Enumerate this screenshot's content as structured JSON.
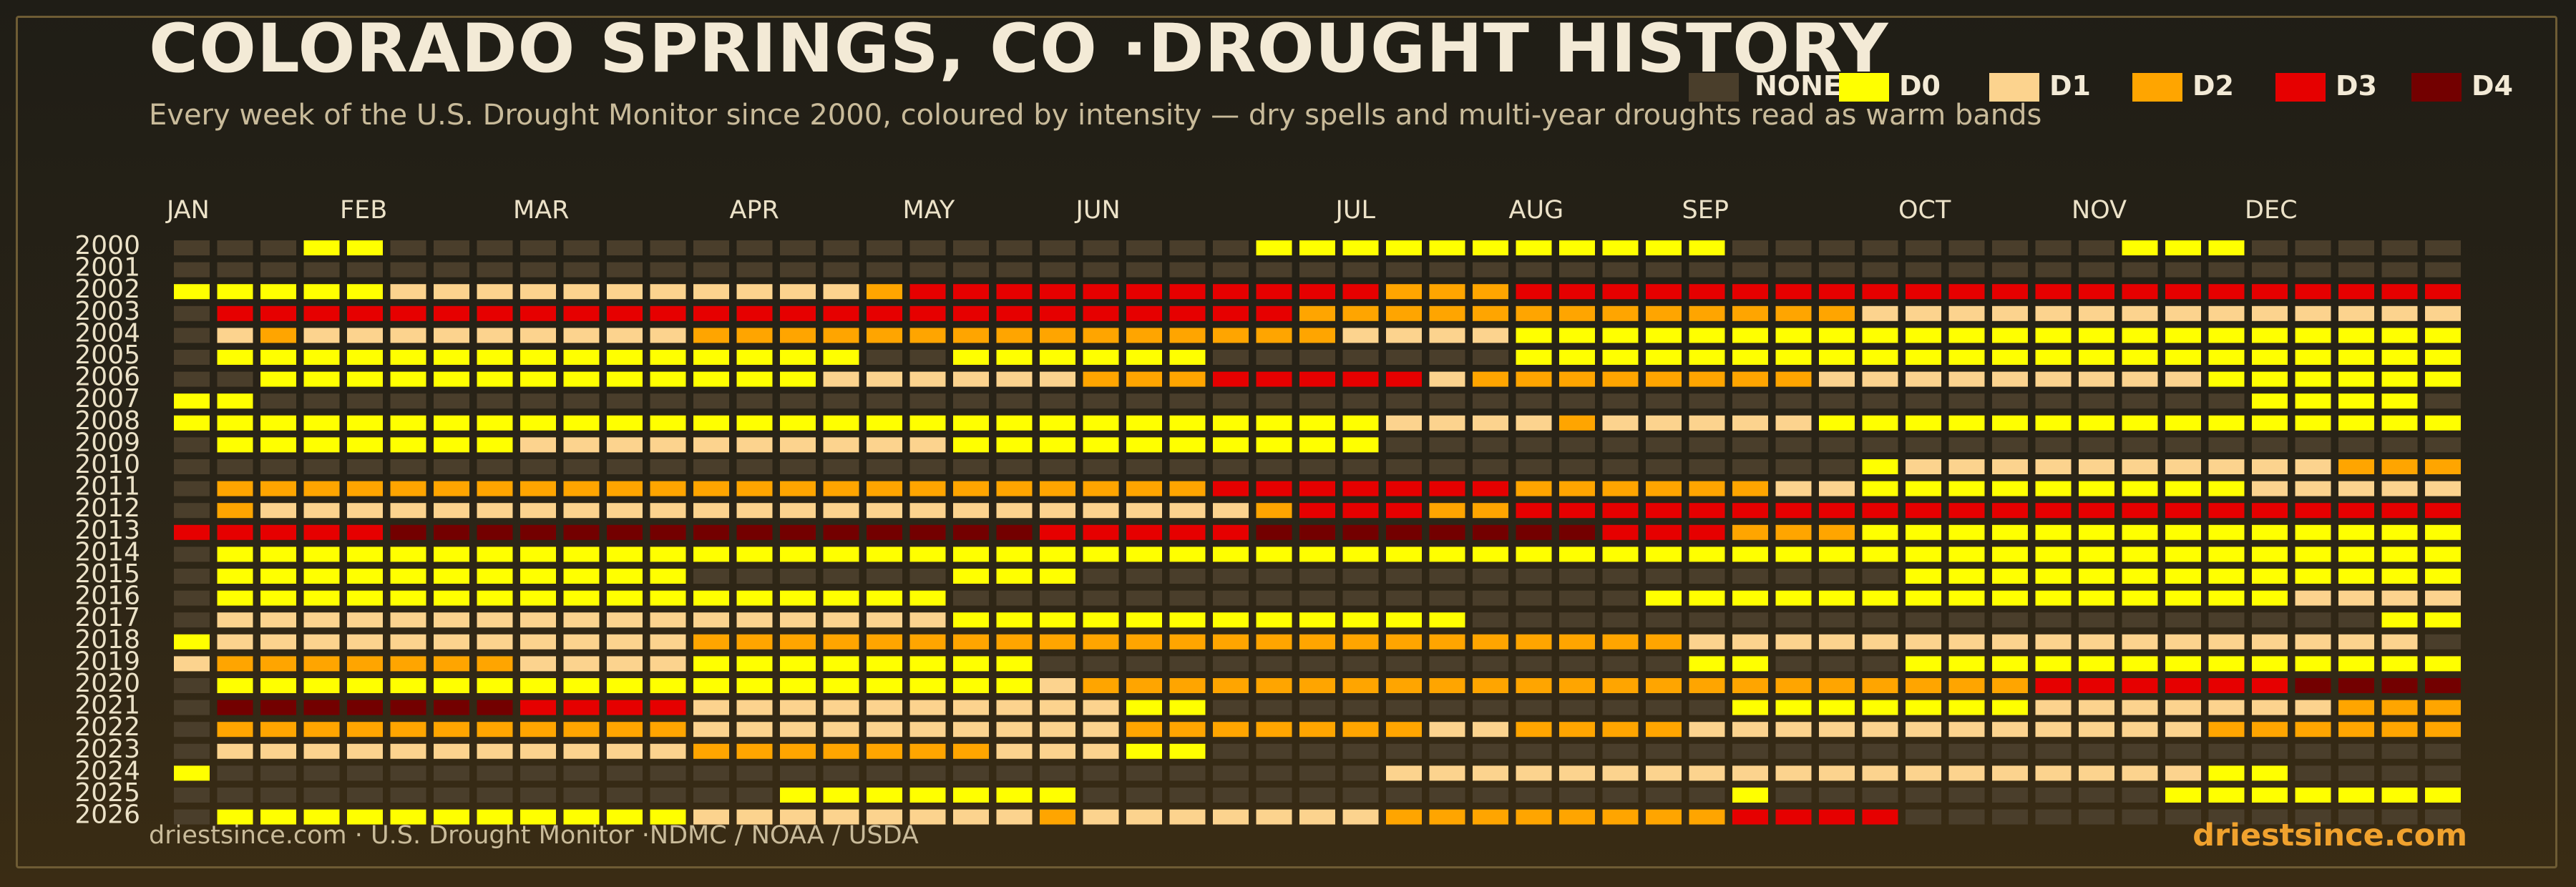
{
  "header": {
    "title": "COLORADO SPRINGS, CO ·DROUGHT HISTORY",
    "subtitle": "Every week of the U.S. Drought Monitor since 2000, coloured by intensity — dry spells and multi-year droughts read as warm bands"
  },
  "footer": {
    "source": "driestsince.com  · U.S. Drought Monitor ·NDMC / NOAA / USDA",
    "brand": "driestsince.com"
  },
  "legend": [
    {
      "label": "NONE",
      "color": "#4a3e2b"
    },
    {
      "label": "D0",
      "color": "#ffff00"
    },
    {
      "label": "D1",
      "color": "#fcd38e"
    },
    {
      "label": "D2",
      "color": "#ffa500"
    },
    {
      "label": "D3",
      "color": "#e60000"
    },
    {
      "label": "D4",
      "color": "#730000"
    }
  ],
  "chart_data": {
    "type": "heatmap",
    "title": "COLORADO SPRINGS, CO ·DROUGHT HISTORY",
    "x_labels": [
      "JAN",
      "FEB",
      "MAR",
      "APR",
      "MAY",
      "JUN",
      "JUL",
      "AUG",
      "SEP",
      "OCT",
      "NOV",
      "DEC"
    ],
    "x_label_weeks": [
      0,
      4,
      8,
      13,
      17,
      21,
      27,
      31,
      35,
      40,
      44,
      48
    ],
    "y_labels": [
      "2000",
      "2001",
      "2002",
      "2003",
      "2004",
      "2005",
      "2006",
      "2007",
      "2008",
      "2009",
      "2010",
      "2011",
      "2012",
      "2013",
      "2014",
      "2015",
      "2016",
      "2017",
      "2018",
      "2019",
      "2020",
      "2021",
      "2022",
      "2023",
      "2024",
      "2025",
      "2026"
    ],
    "weeks_per_year": 53,
    "value_scale": "-1 = no data/none, 0 = D0, 1 = D1, 2 = D2, 3 = D3, 4 = D4",
    "rows": {
      "2000": [
        -1,
        -1,
        -1,
        0,
        0,
        -1,
        -1,
        -1,
        -1,
        -1,
        -1,
        -1,
        -1,
        -1,
        -1,
        -1,
        -1,
        -1,
        -1,
        -1,
        -1,
        -1,
        -1,
        -1,
        -1,
        0,
        0,
        0,
        0,
        0,
        0,
        0,
        0,
        0,
        0,
        0,
        -1,
        -1,
        -1,
        -1,
        -1,
        -1,
        -1,
        -1,
        -1,
        0,
        0,
        0,
        -1,
        -1,
        -1,
        -1,
        -1
      ],
      "2001": [
        -1,
        -1,
        -1,
        -1,
        -1,
        -1,
        -1,
        -1,
        -1,
        -1,
        -1,
        -1,
        -1,
        -1,
        -1,
        -1,
        -1,
        -1,
        -1,
        -1,
        -1,
        -1,
        -1,
        -1,
        -1,
        -1,
        -1,
        -1,
        -1,
        -1,
        -1,
        -1,
        -1,
        -1,
        -1,
        -1,
        -1,
        -1,
        -1,
        -1,
        -1,
        -1,
        -1,
        -1,
        -1,
        -1,
        -1,
        -1,
        -1,
        -1,
        -1,
        -1,
        -1
      ],
      "2002": [
        0,
        0,
        0,
        0,
        0,
        1,
        1,
        1,
        1,
        1,
        1,
        1,
        1,
        1,
        1,
        1,
        2,
        3,
        3,
        3,
        3,
        3,
        3,
        3,
        3,
        3,
        3,
        3,
        2,
        2,
        2,
        3,
        3,
        3,
        3,
        3,
        3,
        3,
        3,
        3,
        3,
        3,
        3,
        3,
        3,
        3,
        3,
        3,
        3,
        3,
        3,
        3,
        3
      ],
      "2003": [
        -1,
        3,
        3,
        3,
        3,
        3,
        3,
        3,
        3,
        3,
        3,
        3,
        3,
        3,
        3,
        3,
        3,
        3,
        3,
        3,
        3,
        3,
        3,
        3,
        3,
        3,
        2,
        2,
        2,
        2,
        2,
        2,
        2,
        2,
        2,
        2,
        2,
        2,
        2,
        1,
        1,
        1,
        1,
        1,
        1,
        1,
        1,
        1,
        1,
        1,
        1,
        1,
        1
      ],
      "2004": [
        -1,
        1,
        2,
        1,
        1,
        1,
        1,
        1,
        1,
        1,
        1,
        1,
        2,
        2,
        2,
        2,
        2,
        2,
        2,
        2,
        2,
        2,
        2,
        2,
        2,
        2,
        2,
        1,
        1,
        1,
        1,
        0,
        0,
        0,
        0,
        0,
        0,
        0,
        0,
        0,
        0,
        0,
        0,
        0,
        0,
        0,
        0,
        0,
        0,
        0,
        0,
        0,
        0
      ],
      "2005": [
        -1,
        0,
        0,
        0,
        0,
        0,
        0,
        0,
        0,
        0,
        0,
        0,
        0,
        0,
        0,
        0,
        -1,
        -1,
        0,
        0,
        0,
        0,
        0,
        0,
        -1,
        -1,
        -1,
        -1,
        -1,
        -1,
        -1,
        0,
        0,
        0,
        0,
        0,
        0,
        0,
        0,
        0,
        0,
        0,
        0,
        0,
        0,
        0,
        0,
        0,
        0,
        0,
        0,
        0,
        0
      ],
      "2006": [
        -1,
        -1,
        0,
        0,
        0,
        0,
        0,
        0,
        0,
        0,
        0,
        0,
        0,
        0,
        0,
        1,
        1,
        1,
        1,
        1,
        1,
        2,
        2,
        2,
        3,
        3,
        3,
        3,
        3,
        1,
        2,
        2,
        2,
        2,
        2,
        2,
        2,
        2,
        1,
        1,
        1,
        1,
        1,
        1,
        1,
        1,
        1,
        0,
        0,
        0,
        0,
        0,
        0
      ],
      "2007": [
        0,
        0,
        -1,
        -1,
        -1,
        -1,
        -1,
        -1,
        -1,
        -1,
        -1,
        -1,
        -1,
        -1,
        -1,
        -1,
        -1,
        -1,
        -1,
        -1,
        -1,
        -1,
        -1,
        -1,
        -1,
        -1,
        -1,
        -1,
        -1,
        -1,
        -1,
        -1,
        -1,
        -1,
        -1,
        -1,
        -1,
        -1,
        -1,
        -1,
        -1,
        -1,
        -1,
        -1,
        -1,
        -1,
        -1,
        -1,
        0,
        0,
        0,
        0,
        -1
      ],
      "2008": [
        0,
        0,
        0,
        0,
        0,
        0,
        0,
        0,
        0,
        0,
        0,
        0,
        0,
        0,
        0,
        0,
        0,
        0,
        0,
        0,
        0,
        0,
        0,
        0,
        0,
        0,
        0,
        0,
        1,
        1,
        1,
        1,
        2,
        1,
        1,
        1,
        1,
        1,
        0,
        0,
        0,
        0,
        0,
        0,
        0,
        0,
        0,
        0,
        0,
        0,
        0,
        0,
        0
      ],
      "2009": [
        -1,
        0,
        0,
        0,
        0,
        0,
        0,
        0,
        1,
        1,
        1,
        1,
        1,
        1,
        1,
        1,
        1,
        1,
        0,
        0,
        0,
        0,
        0,
        0,
        0,
        0,
        0,
        0,
        -1,
        -1,
        -1,
        -1,
        -1,
        -1,
        -1,
        -1,
        -1,
        -1,
        -1,
        -1,
        -1,
        -1,
        -1,
        -1,
        -1,
        -1,
        -1,
        -1,
        -1,
        -1,
        -1,
        -1,
        -1
      ],
      "2010": [
        -1,
        -1,
        -1,
        -1,
        -1,
        -1,
        -1,
        -1,
        -1,
        -1,
        -1,
        -1,
        -1,
        -1,
        -1,
        -1,
        -1,
        -1,
        -1,
        -1,
        -1,
        -1,
        -1,
        -1,
        -1,
        -1,
        -1,
        -1,
        -1,
        -1,
        -1,
        -1,
        -1,
        -1,
        -1,
        -1,
        -1,
        -1,
        -1,
        0,
        1,
        1,
        1,
        1,
        1,
        1,
        1,
        1,
        1,
        1,
        2,
        2,
        2
      ],
      "2011": [
        -1,
        2,
        2,
        2,
        2,
        2,
        2,
        2,
        2,
        2,
        2,
        2,
        2,
        2,
        2,
        2,
        2,
        2,
        2,
        2,
        2,
        2,
        2,
        2,
        3,
        3,
        3,
        3,
        3,
        3,
        3,
        2,
        2,
        2,
        2,
        2,
        2,
        1,
        1,
        0,
        0,
        0,
        0,
        0,
        0,
        0,
        0,
        0,
        1,
        1,
        1,
        1,
        1
      ],
      "2012": [
        -1,
        2,
        1,
        1,
        1,
        1,
        1,
        1,
        1,
        1,
        1,
        1,
        1,
        1,
        1,
        1,
        1,
        1,
        1,
        1,
        1,
        1,
        1,
        1,
        1,
        2,
        3,
        3,
        3,
        2,
        2,
        3,
        3,
        3,
        3,
        3,
        3,
        3,
        3,
        3,
        3,
        3,
        3,
        3,
        3,
        3,
        3,
        3,
        3,
        3,
        3,
        3,
        3
      ],
      "2013": [
        3,
        3,
        3,
        3,
        3,
        4,
        4,
        4,
        4,
        4,
        4,
        4,
        4,
        4,
        4,
        4,
        4,
        4,
        4,
        4,
        3,
        3,
        3,
        3,
        3,
        4,
        4,
        4,
        4,
        4,
        4,
        4,
        4,
        3,
        3,
        3,
        2,
        2,
        2,
        0,
        0,
        0,
        0,
        0,
        0,
        0,
        0,
        0,
        0,
        0,
        0,
        0,
        0
      ],
      "2014": [
        -1,
        0,
        0,
        0,
        0,
        0,
        0,
        0,
        0,
        0,
        0,
        0,
        0,
        0,
        0,
        0,
        0,
        0,
        0,
        0,
        0,
        0,
        0,
        0,
        0,
        0,
        0,
        0,
        0,
        0,
        0,
        0,
        0,
        0,
        0,
        0,
        0,
        0,
        0,
        0,
        0,
        0,
        0,
        0,
        0,
        0,
        0,
        0,
        0,
        0,
        0,
        0,
        0
      ],
      "2015": [
        -1,
        0,
        0,
        0,
        0,
        0,
        0,
        0,
        0,
        0,
        0,
        0,
        -1,
        -1,
        -1,
        -1,
        -1,
        -1,
        0,
        0,
        0,
        -1,
        -1,
        -1,
        -1,
        -1,
        -1,
        -1,
        -1,
        -1,
        -1,
        -1,
        -1,
        -1,
        -1,
        -1,
        -1,
        -1,
        -1,
        -1,
        0,
        0,
        0,
        0,
        0,
        0,
        0,
        0,
        0,
        0,
        0,
        0,
        0
      ],
      "2016": [
        -1,
        0,
        0,
        0,
        0,
        0,
        0,
        0,
        0,
        0,
        0,
        0,
        0,
        0,
        0,
        0,
        0,
        0,
        -1,
        -1,
        -1,
        -1,
        -1,
        -1,
        -1,
        -1,
        -1,
        -1,
        -1,
        -1,
        -1,
        -1,
        -1,
        -1,
        0,
        0,
        0,
        0,
        0,
        0,
        0,
        0,
        0,
        0,
        0,
        0,
        0,
        0,
        0,
        1,
        1,
        1,
        1
      ],
      "2017": [
        -1,
        1,
        1,
        1,
        1,
        1,
        1,
        1,
        1,
        1,
        1,
        1,
        1,
        1,
        1,
        1,
        1,
        1,
        0,
        0,
        0,
        0,
        0,
        0,
        0,
        0,
        0,
        0,
        0,
        0,
        -1,
        -1,
        -1,
        -1,
        -1,
        -1,
        -1,
        -1,
        -1,
        -1,
        -1,
        -1,
        -1,
        -1,
        -1,
        -1,
        -1,
        -1,
        -1,
        -1,
        -1,
        0,
        0
      ],
      "2018": [
        0,
        1,
        1,
        1,
        1,
        1,
        1,
        1,
        1,
        1,
        1,
        1,
        2,
        2,
        2,
        2,
        2,
        2,
        2,
        2,
        2,
        2,
        2,
        2,
        2,
        2,
        2,
        2,
        2,
        2,
        2,
        2,
        2,
        2,
        2,
        1,
        1,
        1,
        1,
        1,
        1,
        1,
        1,
        1,
        1,
        1,
        1,
        1,
        1,
        1,
        1,
        1,
        -1
      ],
      "2019": [
        1,
        2,
        2,
        2,
        2,
        2,
        2,
        2,
        1,
        1,
        1,
        1,
        0,
        0,
        0,
        0,
        0,
        0,
        0,
        0,
        -1,
        -1,
        -1,
        -1,
        -1,
        -1,
        -1,
        -1,
        -1,
        -1,
        -1,
        -1,
        -1,
        -1,
        -1,
        0,
        0,
        -1,
        -1,
        -1,
        0,
        0,
        0,
        0,
        0,
        0,
        0,
        0,
        0,
        0,
        0,
        0,
        0
      ],
      "2020": [
        -1,
        0,
        0,
        0,
        0,
        0,
        0,
        0,
        0,
        0,
        0,
        0,
        0,
        0,
        0,
        0,
        0,
        0,
        0,
        0,
        1,
        2,
        2,
        2,
        2,
        2,
        2,
        2,
        2,
        2,
        2,
        2,
        2,
        2,
        2,
        2,
        2,
        2,
        2,
        2,
        2,
        2,
        2,
        3,
        3,
        3,
        3,
        3,
        3,
        4,
        4,
        4,
        4
      ],
      "2021": [
        -1,
        4,
        4,
        4,
        4,
        4,
        4,
        4,
        3,
        3,
        3,
        3,
        1,
        1,
        1,
        1,
        1,
        1,
        1,
        1,
        1,
        1,
        0,
        0,
        -1,
        -1,
        -1,
        -1,
        -1,
        -1,
        -1,
        -1,
        -1,
        -1,
        -1,
        -1,
        0,
        0,
        0,
        0,
        0,
        0,
        0,
        1,
        1,
        1,
        1,
        1,
        1,
        1,
        2,
        2,
        2
      ],
      "2022": [
        -1,
        2,
        2,
        2,
        2,
        2,
        2,
        2,
        2,
        2,
        2,
        2,
        1,
        1,
        1,
        1,
        1,
        1,
        1,
        1,
        1,
        1,
        2,
        2,
        2,
        2,
        2,
        2,
        2,
        1,
        1,
        2,
        2,
        2,
        2,
        1,
        1,
        1,
        1,
        1,
        1,
        1,
        1,
        1,
        1,
        1,
        1,
        2,
        2,
        2,
        2,
        2,
        2
      ],
      "2023": [
        -1,
        1,
        1,
        1,
        1,
        1,
        1,
        1,
        1,
        1,
        1,
        1,
        2,
        2,
        2,
        2,
        2,
        2,
        2,
        1,
        1,
        1,
        0,
        0,
        -1,
        -1,
        -1,
        -1,
        -1,
        -1,
        -1,
        -1,
        -1,
        -1,
        -1,
        -1,
        -1,
        -1,
        -1,
        -1,
        -1,
        -1,
        -1,
        -1,
        -1,
        -1,
        -1,
        -1,
        -1,
        -1,
        -1,
        -1,
        -1
      ],
      "2024": [
        0,
        -1,
        -1,
        -1,
        -1,
        -1,
        -1,
        -1,
        -1,
        -1,
        -1,
        -1,
        -1,
        -1,
        -1,
        -1,
        -1,
        -1,
        -1,
        -1,
        -1,
        -1,
        -1,
        -1,
        -1,
        -1,
        -1,
        -1,
        1,
        1,
        1,
        1,
        1,
        1,
        1,
        1,
        1,
        1,
        1,
        1,
        1,
        1,
        1,
        1,
        1,
        1,
        1,
        0,
        0,
        -1,
        -1,
        -1,
        -1
      ],
      "2025": [
        -1,
        -1,
        -1,
        -1,
        -1,
        -1,
        -1,
        -1,
        -1,
        -1,
        -1,
        -1,
        -1,
        -1,
        0,
        0,
        0,
        0,
        0,
        0,
        0,
        -1,
        -1,
        -1,
        -1,
        -1,
        -1,
        -1,
        -1,
        -1,
        -1,
        -1,
        -1,
        -1,
        -1,
        -1,
        0,
        -1,
        -1,
        -1,
        -1,
        -1,
        -1,
        -1,
        -1,
        -1,
        0,
        0,
        0,
        0,
        0,
        0,
        0
      ],
      "2026": [
        -1,
        0,
        0,
        0,
        0,
        0,
        0,
        0,
        0,
        0,
        0,
        0,
        1,
        1,
        1,
        1,
        1,
        1,
        1,
        1,
        2,
        1,
        1,
        1,
        1,
        1,
        1,
        1,
        2,
        2,
        2,
        2,
        2,
        2,
        2,
        2,
        3,
        3,
        3,
        3,
        -1,
        -1,
        -1,
        -1,
        -1,
        -1,
        -1,
        -1,
        -1,
        -1,
        -1,
        -1,
        -1
      ]
    }
  }
}
